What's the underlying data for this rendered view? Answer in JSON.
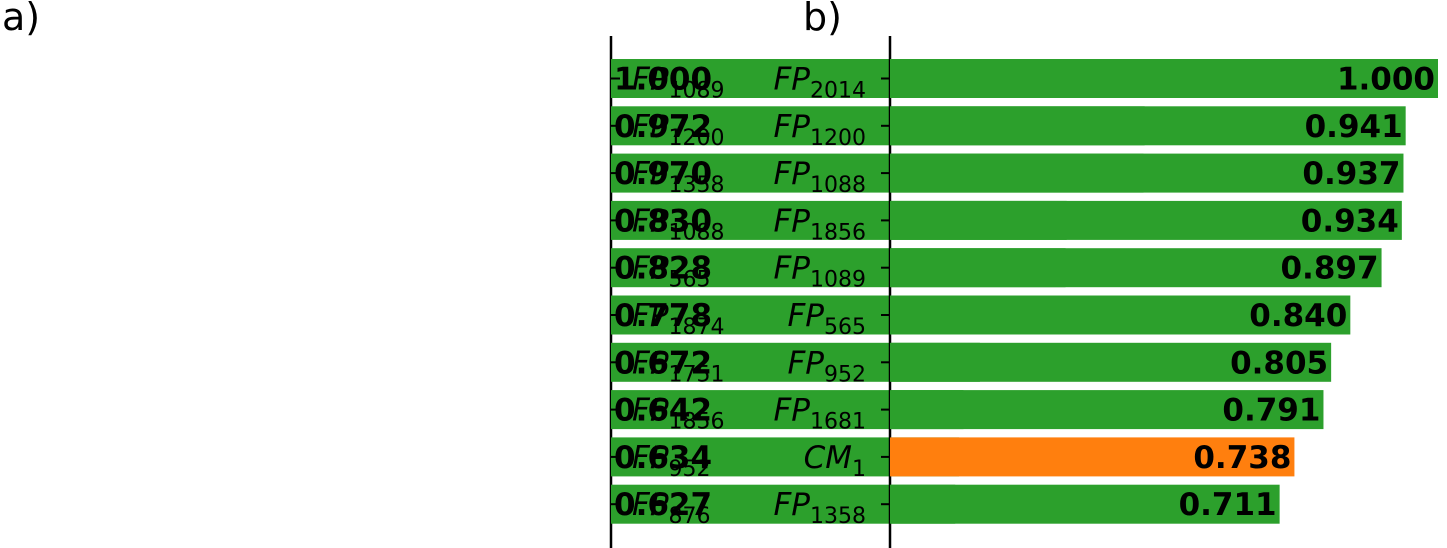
{
  "colors": {
    "bar_default": "#2ca02c",
    "bar_highlight": "#ff7f0e",
    "axis": "#000000"
  },
  "chart_data": [
    {
      "panel": "a)",
      "type": "bar",
      "orientation": "horizontal",
      "direction": "left",
      "xlim": [
        0,
        1
      ],
      "grid": false,
      "categories": [
        {
          "base": "FP",
          "sub": "1089"
        },
        {
          "base": "FP",
          "sub": "1200"
        },
        {
          "base": "FP",
          "sub": "1358"
        },
        {
          "base": "FP",
          "sub": "1088"
        },
        {
          "base": "FP",
          "sub": "565"
        },
        {
          "base": "FP",
          "sub": "1874"
        },
        {
          "base": "FP",
          "sub": "1751"
        },
        {
          "base": "FP",
          "sub": "1856"
        },
        {
          "base": "FP",
          "sub": "952"
        },
        {
          "base": "FP",
          "sub": "876"
        }
      ],
      "values": [
        1.0,
        0.972,
        0.97,
        0.83,
        0.828,
        0.778,
        0.672,
        0.642,
        0.634,
        0.627
      ],
      "value_labels": [
        "1.000",
        "0.972",
        "0.970",
        "0.830",
        "0.828",
        "0.778",
        "0.672",
        "0.642",
        "0.634",
        "0.627"
      ],
      "highlight": []
    },
    {
      "panel": "b)",
      "type": "bar",
      "orientation": "horizontal",
      "direction": "right",
      "xlim": [
        0,
        1
      ],
      "grid": false,
      "categories": [
        {
          "base": "FP",
          "sub": "2014"
        },
        {
          "base": "FP",
          "sub": "1200"
        },
        {
          "base": "FP",
          "sub": "1088"
        },
        {
          "base": "FP",
          "sub": "1856"
        },
        {
          "base": "FP",
          "sub": "1089"
        },
        {
          "base": "FP",
          "sub": "565"
        },
        {
          "base": "FP",
          "sub": "952"
        },
        {
          "base": "FP",
          "sub": "1681"
        },
        {
          "base": "CM",
          "sub": "1"
        },
        {
          "base": "FP",
          "sub": "1358"
        }
      ],
      "values": [
        1.0,
        0.941,
        0.937,
        0.934,
        0.897,
        0.84,
        0.805,
        0.791,
        0.738,
        0.711
      ],
      "value_labels": [
        "1.000",
        "0.941",
        "0.937",
        "0.934",
        "0.897",
        "0.840",
        "0.805",
        "0.791",
        "0.738",
        "0.711"
      ],
      "highlight": [
        8
      ]
    }
  ]
}
